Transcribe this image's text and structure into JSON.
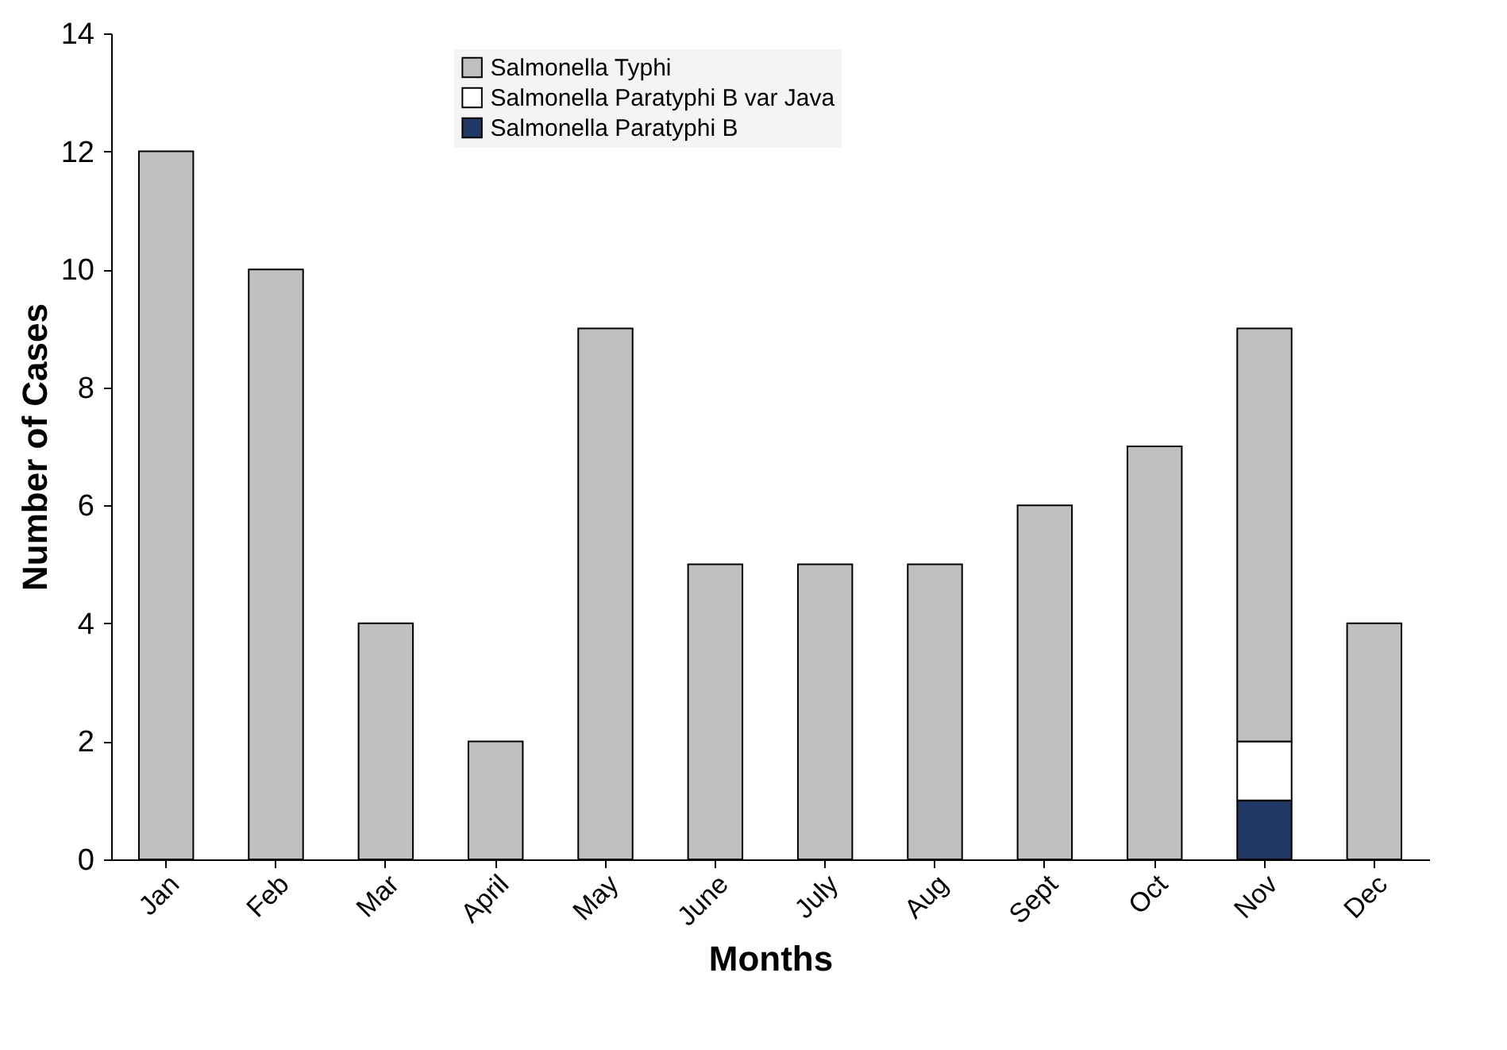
{
  "chart_data": {
    "type": "bar",
    "xlabel": "Months",
    "ylabel": "Number of Cases",
    "categories": [
      "Jan",
      "Feb",
      "Mar",
      "April",
      "May",
      "June",
      "July",
      "Aug",
      "Sept",
      "Oct",
      "Nov",
      "Dec"
    ],
    "stacked": true,
    "series": [
      {
        "name": "Salmonella Paratyphi B",
        "color": "#1f3864",
        "values": [
          null,
          null,
          null,
          null,
          null,
          null,
          null,
          null,
          null,
          null,
          1,
          null
        ]
      },
      {
        "name": "Salmonella Paratyphi B var Java",
        "color": "#ffffff",
        "values": [
          null,
          null,
          null,
          null,
          null,
          null,
          null,
          null,
          null,
          null,
          1,
          null
        ]
      },
      {
        "name": "Salmonella Typhi",
        "color": "#c0c0c0",
        "values": [
          12,
          10,
          4,
          2,
          9,
          5,
          5,
          5,
          6,
          7,
          7,
          4
        ]
      }
    ],
    "ylim": [
      0,
      14
    ],
    "yticks": [
      0,
      2,
      4,
      6,
      8,
      10,
      12,
      14
    ],
    "grid": false,
    "legend": "top"
  }
}
